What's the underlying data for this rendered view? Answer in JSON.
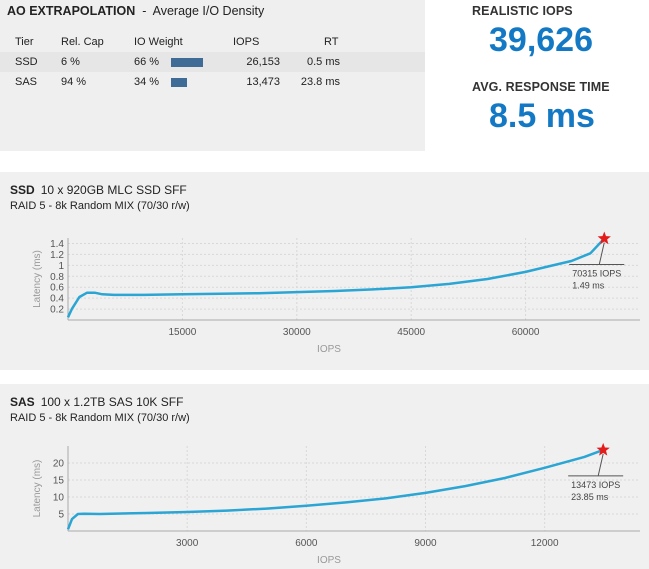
{
  "summary": {
    "title_bold": "AO EXTRAPOLATION",
    "title_rest": "  -  Average I/O Density",
    "columns": [
      "Tier",
      "Rel. Cap",
      "IO Weight",
      "IOPS",
      "RT"
    ],
    "rows": [
      {
        "tier": "SSD",
        "cap": "6 %",
        "weight": "66 %",
        "weight_fraction": 0.66,
        "iops": "26,153",
        "rt": "0.5 ms"
      },
      {
        "tier": "SAS",
        "cap": "94 %",
        "weight": "34 %",
        "weight_fraction": 0.34,
        "iops": "13,473",
        "rt": "23.8 ms"
      }
    ]
  },
  "kpis": {
    "iops_label": "REALISTIC IOPS",
    "iops_value": "39,626",
    "rt_label": "AVG. RESPONSE TIME",
    "rt_value": "8.5 ms",
    "accent_color": "#1479c4"
  },
  "chart_data": [
    {
      "type": "line",
      "header": "SSD",
      "title": "10 x 920GB MLC SSD SFF",
      "subtitle": "RAID 5 - 8k Random MIX (70/30 r/w)",
      "xlabel": "IOPS",
      "ylabel": "Latency (ms)",
      "xlim": [
        0,
        75000
      ],
      "ylim": [
        0,
        1.5
      ],
      "xticks": [
        15000,
        30000,
        45000,
        60000
      ],
      "yticks": [
        0.2,
        0.4,
        0.6,
        0.8,
        1,
        1.2,
        1.4
      ],
      "grid": true,
      "color": "#2aa5d4",
      "series": [
        {
          "x": [
            0,
            500,
            1500,
            2500,
            3500,
            4500,
            6000,
            10000,
            15000,
            20000,
            25000,
            30000,
            35000,
            40000,
            45000,
            50000,
            55000,
            60000,
            63000,
            66000,
            68500,
            70315
          ],
          "y": [
            0.05,
            0.2,
            0.42,
            0.5,
            0.5,
            0.47,
            0.46,
            0.46,
            0.47,
            0.48,
            0.49,
            0.51,
            0.53,
            0.56,
            0.6,
            0.66,
            0.75,
            0.88,
            0.98,
            1.08,
            1.22,
            1.49
          ]
        }
      ],
      "annotation": {
        "x": 70315,
        "y": 1.49,
        "line1": "70315 IOPS",
        "line2": "1.49 ms"
      },
      "star_color": "#e31b1b"
    },
    {
      "type": "line",
      "header": "SAS",
      "title": "100 x 1.2TB SAS 10K SFF",
      "subtitle": "RAID 5 - 8k Random MIX (70/30 r/w)",
      "xlabel": "IOPS",
      "ylabel": "Latency (ms)",
      "xlim": [
        0,
        14400
      ],
      "ylim": [
        0,
        25
      ],
      "xticks": [
        3000,
        6000,
        9000,
        12000
      ],
      "yticks": [
        5,
        10,
        15,
        20
      ],
      "grid": true,
      "color": "#2aa5d4",
      "series": [
        {
          "x": [
            0,
            100,
            250,
            400,
            800,
            2000,
            3000,
            4000,
            5000,
            6000,
            7000,
            8000,
            9000,
            10000,
            11000,
            12000,
            13000,
            13473
          ],
          "y": [
            0.5,
            3.5,
            5.0,
            5.1,
            5.0,
            5.3,
            5.6,
            6.0,
            6.6,
            7.4,
            8.4,
            9.6,
            11.2,
            13.2,
            15.6,
            18.6,
            21.8,
            23.85
          ]
        }
      ],
      "annotation": {
        "x": 13473,
        "y": 23.85,
        "line1": "13473 IOPS",
        "line2": "23.85 ms"
      },
      "star_color": "#e31b1b"
    }
  ]
}
